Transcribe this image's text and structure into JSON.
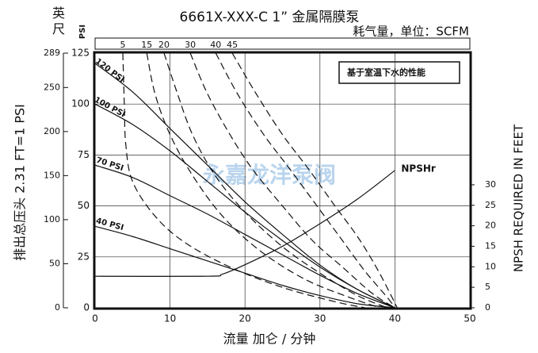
{
  "chart_data": {
    "type": "line",
    "title": "6661X-XXX-C  1” 金属隔膜泵",
    "corner_unit_feet": "英尺",
    "corner_unit_psi": "PSI",
    "top_axis_label": "耗气量，单位：SCFM",
    "note": "基于室温下水的性能",
    "watermark": "永嘉龙洋泵阀",
    "x_label": "流量 加仑 / 分钟",
    "y_label": "排出总压头 2.31 FT=1 PSI",
    "y2_label": "NPSH REQUIRED IN FEET",
    "xlim": [
      0,
      50
    ],
    "xticks": [
      0,
      10,
      20,
      30,
      40,
      50
    ],
    "ylim": [
      0,
      125
    ],
    "yticks": [
      0,
      25,
      50,
      75,
      100,
      125
    ],
    "yfeet_lim": [
      0,
      289
    ],
    "yfeet_ticks": [
      0,
      50,
      100,
      150,
      200,
      250,
      289
    ],
    "y2lim": [
      0,
      62.1
    ],
    "y2ticks": [
      0,
      5,
      10,
      15,
      20,
      25,
      30
    ],
    "grid": true,
    "series": [
      {
        "name": "120 PSI",
        "color": "#111111",
        "x": [
          0,
          5,
          10,
          15,
          20,
          25,
          30,
          35,
          40
        ],
        "values": [
          120,
          106,
          88,
          70,
          52,
          36,
          21,
          9,
          0
        ]
      },
      {
        "name": "100 PSI",
        "color": "#111111",
        "x": [
          0,
          5,
          10,
          15,
          20,
          25,
          30,
          35,
          40
        ],
        "values": [
          100,
          90,
          77,
          62,
          47,
          33,
          20,
          9,
          0
        ]
      },
      {
        "name": "70 PSI",
        "color": "#111111",
        "x": [
          0,
          5,
          10,
          15,
          20,
          25,
          30,
          35,
          40
        ],
        "values": [
          70,
          64,
          55,
          46,
          36,
          26,
          16,
          7,
          0
        ]
      },
      {
        "name": "40 PSI",
        "color": "#111111",
        "x": [
          0,
          5,
          10,
          15,
          20,
          25,
          30,
          35,
          40
        ],
        "values": [
          40,
          35,
          29,
          23,
          17,
          11,
          6,
          2,
          0
        ]
      }
    ],
    "air_series": [
      {
        "name": "5",
        "color": "#111111",
        "x": [
          3.7,
          3.9,
          4.1,
          5,
          8,
          12,
          18,
          25,
          32,
          36
        ],
        "values": [
          125,
          100,
          80,
          62,
          45,
          32,
          20,
          10,
          3,
          0
        ]
      },
      {
        "name": "15",
        "color": "#111111",
        "x": [
          6.9,
          8,
          10,
          13,
          17,
          22,
          28,
          34,
          38
        ],
        "values": [
          125,
          105,
          85,
          65,
          45,
          28,
          14,
          5,
          0
        ]
      },
      {
        "name": "20",
        "color": "#111111",
        "x": [
          9.2,
          11,
          13,
          16,
          20,
          25,
          30,
          35,
          39
        ],
        "values": [
          125,
          105,
          85,
          65,
          47,
          30,
          17,
          6,
          0
        ]
      },
      {
        "name": "30",
        "color": "#111111",
        "x": [
          12.7,
          15,
          18,
          21,
          25,
          29,
          33,
          37,
          40
        ],
        "values": [
          125,
          105,
          85,
          68,
          50,
          33,
          20,
          7,
          0
        ]
      },
      {
        "name": "40",
        "color": "#111111",
        "x": [
          16.1,
          19,
          22.5,
          26,
          30,
          33,
          36,
          39,
          40
        ],
        "values": [
          125,
          105,
          85,
          68,
          48,
          33,
          18,
          5,
          0
        ]
      },
      {
        "name": "45",
        "color": "#111111",
        "x": [
          18.3,
          21.5,
          25,
          28.5,
          32,
          35,
          37.5,
          39.5,
          40.3
        ],
        "values": [
          125,
          105,
          85,
          68,
          50,
          35,
          20,
          6,
          0
        ]
      }
    ],
    "npsh_series": {
      "name": "NPSHr",
      "color": "#111111",
      "axis": "y2",
      "x": [
        0,
        15,
        17,
        20,
        25,
        30,
        35,
        40
      ],
      "values": [
        7.7,
        7.7,
        8.2,
        10.5,
        15,
        20.5,
        26.5,
        33.5
      ]
    }
  }
}
